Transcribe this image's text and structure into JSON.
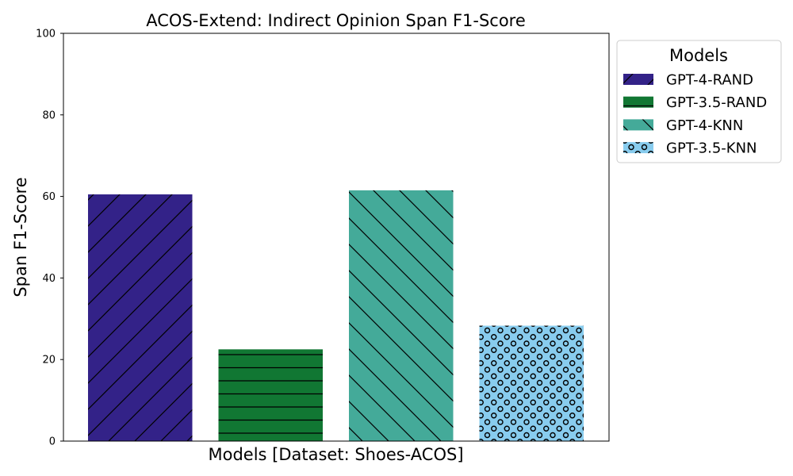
{
  "chart_data": {
    "type": "bar",
    "title": "ACOS-Extend: Indirect Opinion Span F1-Score",
    "xlabel": "Models [Dataset: Shoes-ACOS]",
    "ylabel": "Span F1-Score",
    "ylim": [
      0,
      100
    ],
    "yticks": [
      "0",
      "20",
      "40",
      "60",
      "80",
      "100"
    ],
    "grid": false,
    "legend": {
      "title": "Models",
      "position": "outside-top-right"
    },
    "series": [
      {
        "name": "GPT-4-RAND",
        "value": 60.5,
        "color": "#332288",
        "hatch": "forward-diagonal"
      },
      {
        "name": "GPT-3.5-RAND",
        "value": 22.5,
        "color": "#117733",
        "hatch": "horizontal"
      },
      {
        "name": "GPT-4-KNN",
        "value": 61.5,
        "color": "#44AA99",
        "hatch": "back-diagonal"
      },
      {
        "name": "GPT-3.5-KNN",
        "value": 28.3,
        "color": "#88CCEE",
        "hatch": "circles"
      }
    ]
  }
}
